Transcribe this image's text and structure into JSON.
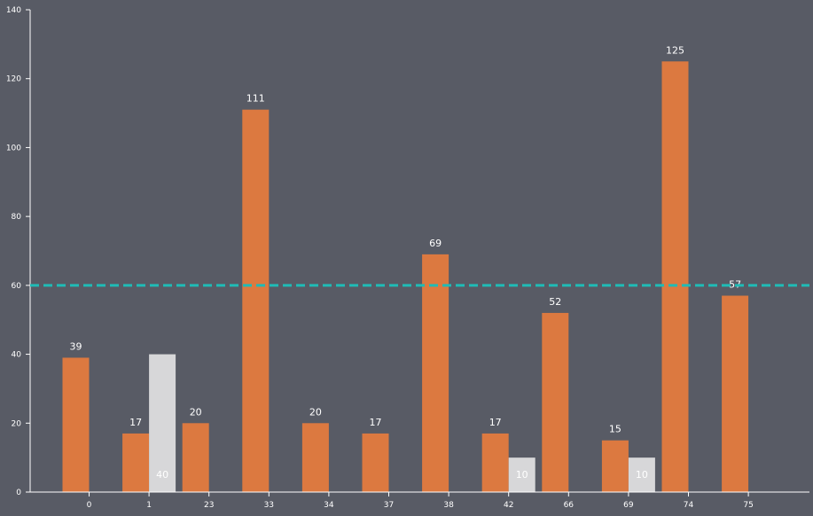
{
  "chart_data": {
    "type": "bar",
    "categories": [
      "0",
      "1",
      "23",
      "33",
      "34",
      "37",
      "38",
      "42",
      "66",
      "69",
      "74",
      "75"
    ],
    "series": [
      {
        "values": [
          39,
          17,
          20,
          111,
          20,
          17,
          69,
          17,
          52,
          15,
          125,
          57
        ]
      },
      {
        "values": [
          null,
          40,
          null,
          null,
          null,
          null,
          null,
          10,
          null,
          10,
          null,
          null
        ]
      }
    ],
    "reference_line": {
      "value": 60,
      "style": "dashed"
    },
    "ylim": [
      0,
      140
    ],
    "yticks": [
      0,
      20,
      40,
      60,
      80,
      100,
      120,
      140
    ],
    "grid": false,
    "title": "",
    "xlabel": "",
    "ylabel": ""
  },
  "colors": {
    "background": "#585b65",
    "series_0": "#dc7940",
    "series_1": "#d7d7d9",
    "reference_line": "#1fbcb6",
    "axis": "#ffffff",
    "label_on_background": "#ffffff",
    "label_on_light_bar": "#ffffff"
  }
}
